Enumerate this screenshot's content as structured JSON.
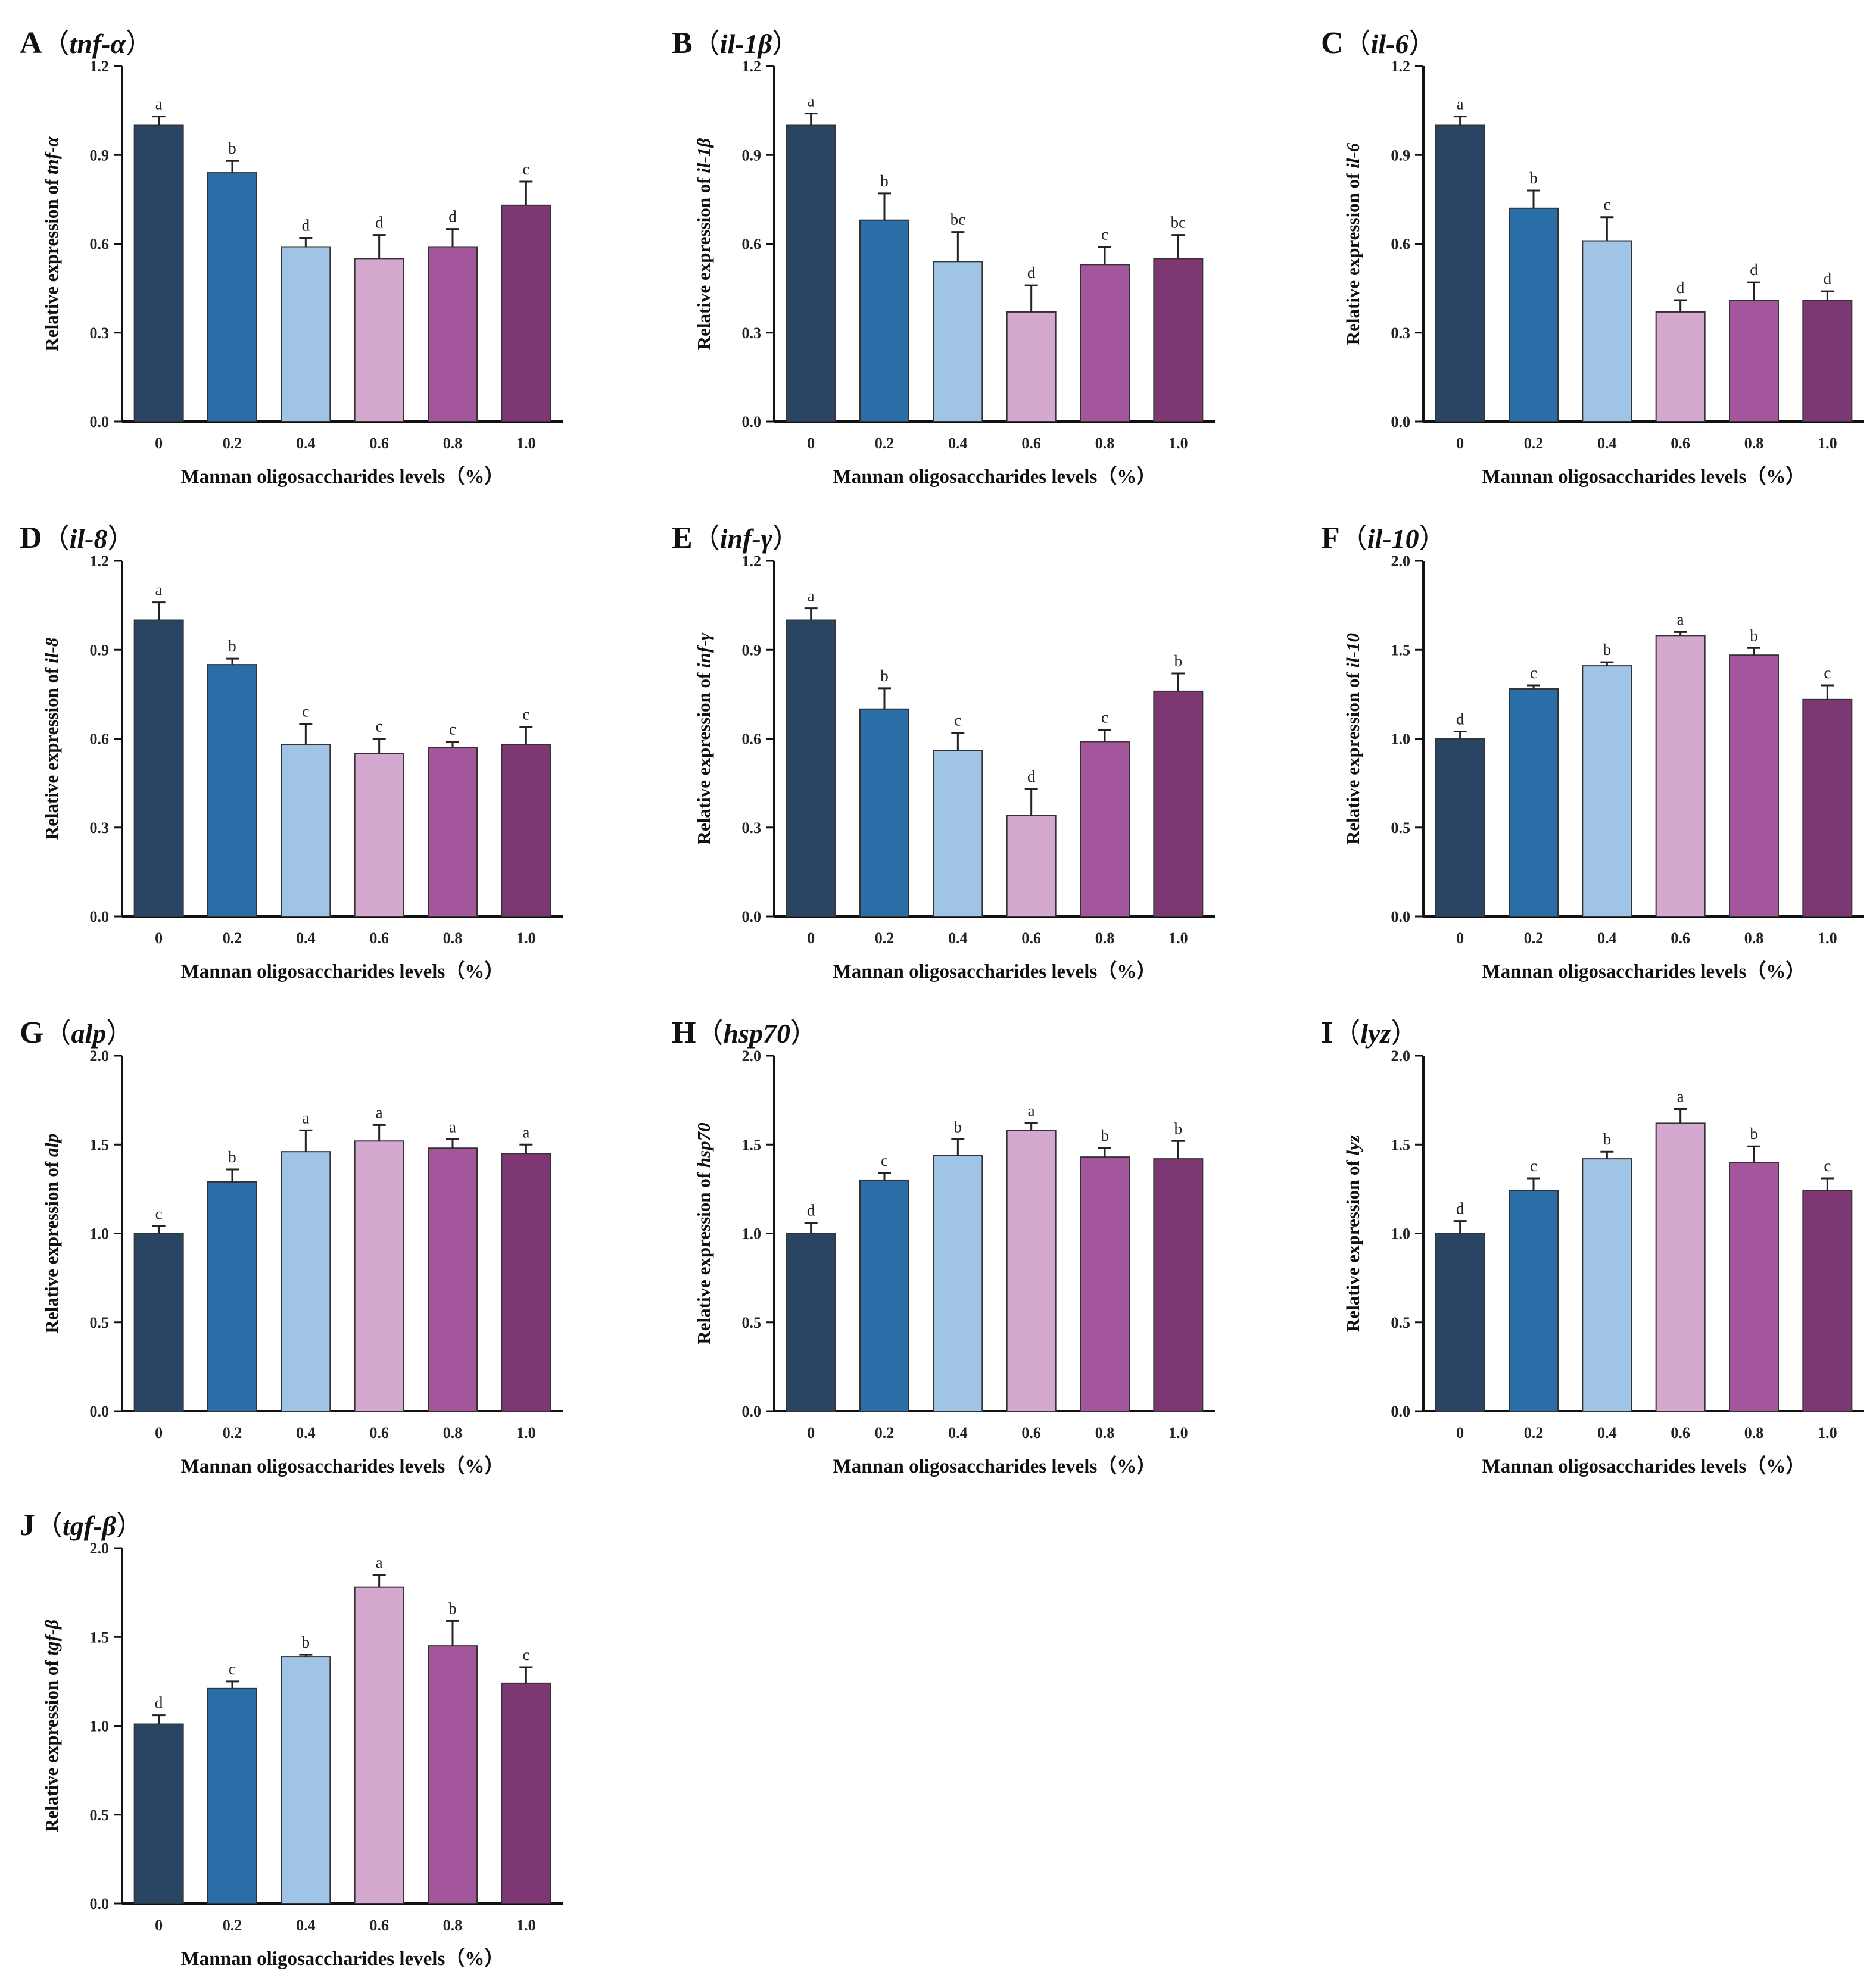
{
  "figure": {
    "x_categories": [
      "0",
      "0.2",
      "0.4",
      "0.6",
      "0.8",
      "1.0"
    ],
    "x_label": "Mannan oligosaccharides levels（%）",
    "y_label_prefix": "Relative expression of ",
    "bar_colors": [
      "#2a4563",
      "#2a6ea8",
      "#a0c4e6",
      "#d4a8cf",
      "#a4569d",
      "#7d3773"
    ]
  },
  "chart_data": [
    {
      "type": "bar",
      "panel": "A",
      "gene": "tnf-α",
      "title": "A（tnf-α）",
      "ylabel": "Relative expression of tnf-α",
      "categories": [
        "0",
        "0.2",
        "0.4",
        "0.6",
        "0.8",
        "1.0"
      ],
      "values": [
        1.0,
        0.84,
        0.59,
        0.55,
        0.59,
        0.73
      ],
      "errors": [
        0.03,
        0.04,
        0.03,
        0.08,
        0.06,
        0.08
      ],
      "letters": [
        "a",
        "b",
        "d",
        "d",
        "d",
        "c"
      ],
      "ylim": [
        0,
        1.2
      ],
      "yticks": [
        "0.0",
        "0.3",
        "0.6",
        "0.9",
        "1.2"
      ]
    },
    {
      "type": "bar",
      "panel": "B",
      "gene": "il-1β",
      "title": "B（il-1β）",
      "ylabel": "Relative expression of il-1β",
      "categories": [
        "0",
        "0.2",
        "0.4",
        "0.6",
        "0.8",
        "1.0"
      ],
      "values": [
        1.0,
        0.68,
        0.54,
        0.37,
        0.53,
        0.55
      ],
      "errors": [
        0.04,
        0.09,
        0.1,
        0.09,
        0.06,
        0.08
      ],
      "letters": [
        "a",
        "b",
        "bc",
        "d",
        "c",
        "bc"
      ],
      "ylim": [
        0,
        1.2
      ],
      "yticks": [
        "0.0",
        "0.3",
        "0.6",
        "0.9",
        "1.2"
      ]
    },
    {
      "type": "bar",
      "panel": "C",
      "gene": "il-6",
      "title": "C（il-6）",
      "ylabel": "Relative expression of il-6",
      "categories": [
        "0",
        "0.2",
        "0.4",
        "0.6",
        "0.8",
        "1.0"
      ],
      "values": [
        1.0,
        0.72,
        0.61,
        0.37,
        0.41,
        0.41
      ],
      "errors": [
        0.03,
        0.06,
        0.08,
        0.04,
        0.06,
        0.03
      ],
      "letters": [
        "a",
        "b",
        "c",
        "d",
        "d",
        "d"
      ],
      "ylim": [
        0,
        1.2
      ],
      "yticks": [
        "0.0",
        "0.3",
        "0.6",
        "0.9",
        "1.2"
      ]
    },
    {
      "type": "bar",
      "panel": "D",
      "gene": "il-8",
      "title": "D（il-8）",
      "ylabel": "Relative expression of il-8",
      "categories": [
        "0",
        "0.2",
        "0.4",
        "0.6",
        "0.8",
        "1.0"
      ],
      "values": [
        1.0,
        0.85,
        0.58,
        0.55,
        0.57,
        0.58
      ],
      "errors": [
        0.06,
        0.02,
        0.07,
        0.05,
        0.02,
        0.06
      ],
      "letters": [
        "a",
        "b",
        "c",
        "c",
        "c",
        "c"
      ],
      "ylim": [
        0,
        1.2
      ],
      "yticks": [
        "0.0",
        "0.3",
        "0.6",
        "0.9",
        "1.2"
      ]
    },
    {
      "type": "bar",
      "panel": "E",
      "gene": "inf-γ",
      "title": "E（inf-γ）",
      "ylabel": "Relative expression of inf-γ",
      "categories": [
        "0",
        "0.2",
        "0.4",
        "0.6",
        "0.8",
        "1.0"
      ],
      "values": [
        1.0,
        0.7,
        0.56,
        0.34,
        0.59,
        0.76
      ],
      "errors": [
        0.04,
        0.07,
        0.06,
        0.09,
        0.04,
        0.06
      ],
      "letters": [
        "a",
        "b",
        "c",
        "d",
        "c",
        "b"
      ],
      "ylim": [
        0,
        1.2
      ],
      "yticks": [
        "0.0",
        "0.3",
        "0.6",
        "0.9",
        "1.2"
      ]
    },
    {
      "type": "bar",
      "panel": "F",
      "gene": "il-10",
      "title": "F（il-10）",
      "ylabel": "Relative expression of il-10",
      "categories": [
        "0",
        "0.2",
        "0.4",
        "0.6",
        "0.8",
        "1.0"
      ],
      "values": [
        1.0,
        1.28,
        1.41,
        1.58,
        1.47,
        1.22
      ],
      "errors": [
        0.04,
        0.02,
        0.02,
        0.02,
        0.04,
        0.08
      ],
      "letters": [
        "d",
        "c",
        "b",
        "a",
        "b",
        "c"
      ],
      "ylim": [
        0,
        2.0
      ],
      "yticks": [
        "0.0",
        "0.5",
        "1.0",
        "1.5",
        "2.0"
      ]
    },
    {
      "type": "bar",
      "panel": "G",
      "gene": "alp",
      "title": "G（alp）",
      "ylabel": "Relative expression of alp",
      "categories": [
        "0",
        "0.2",
        "0.4",
        "0.6",
        "0.8",
        "1.0"
      ],
      "values": [
        1.0,
        1.29,
        1.46,
        1.52,
        1.48,
        1.45
      ],
      "errors": [
        0.04,
        0.07,
        0.12,
        0.09,
        0.05,
        0.05
      ],
      "letters": [
        "c",
        "b",
        "a",
        "a",
        "a",
        "a"
      ],
      "ylim": [
        0,
        2.0
      ],
      "yticks": [
        "0.0",
        "0.5",
        "1.0",
        "1.5",
        "2.0"
      ]
    },
    {
      "type": "bar",
      "panel": "H",
      "gene": "hsp70",
      "title": "H（hsp70）",
      "ylabel": "Relative expression of hsp70",
      "categories": [
        "0",
        "0.2",
        "0.4",
        "0.6",
        "0.8",
        "1.0"
      ],
      "values": [
        1.0,
        1.3,
        1.44,
        1.58,
        1.43,
        1.42
      ],
      "errors": [
        0.06,
        0.04,
        0.09,
        0.04,
        0.05,
        0.1
      ],
      "letters": [
        "d",
        "c",
        "b",
        "a",
        "b",
        "b"
      ],
      "ylim": [
        0,
        2.0
      ],
      "yticks": [
        "0.0",
        "0.5",
        "1.0",
        "1.5",
        "2.0"
      ]
    },
    {
      "type": "bar",
      "panel": "I",
      "gene": "lyz",
      "title": "I（lyz）",
      "ylabel": "Relative expression of lyz",
      "categories": [
        "0",
        "0.2",
        "0.4",
        "0.6",
        "0.8",
        "1.0"
      ],
      "values": [
        1.0,
        1.24,
        1.42,
        1.62,
        1.4,
        1.24
      ],
      "errors": [
        0.07,
        0.07,
        0.04,
        0.08,
        0.09,
        0.07
      ],
      "letters": [
        "d",
        "c",
        "b",
        "a",
        "b",
        "c"
      ],
      "ylim": [
        0,
        2.0
      ],
      "yticks": [
        "0.0",
        "0.5",
        "1.0",
        "1.5",
        "2.0"
      ]
    },
    {
      "type": "bar",
      "panel": "J",
      "gene": "tgf-β",
      "title": "J（tgf-β）",
      "ylabel": "Relative expression of tgf-β",
      "categories": [
        "0",
        "0.2",
        "0.4",
        "0.6",
        "0.8",
        "1.0"
      ],
      "values": [
        1.01,
        1.21,
        1.39,
        1.78,
        1.45,
        1.24
      ],
      "errors": [
        0.05,
        0.04,
        0.01,
        0.07,
        0.14,
        0.09
      ],
      "letters": [
        "d",
        "c",
        "b",
        "a",
        "b",
        "c"
      ],
      "ylim": [
        0,
        2.0
      ],
      "yticks": [
        "0.0",
        "0.5",
        "1.0",
        "1.5",
        "2.0"
      ]
    }
  ]
}
